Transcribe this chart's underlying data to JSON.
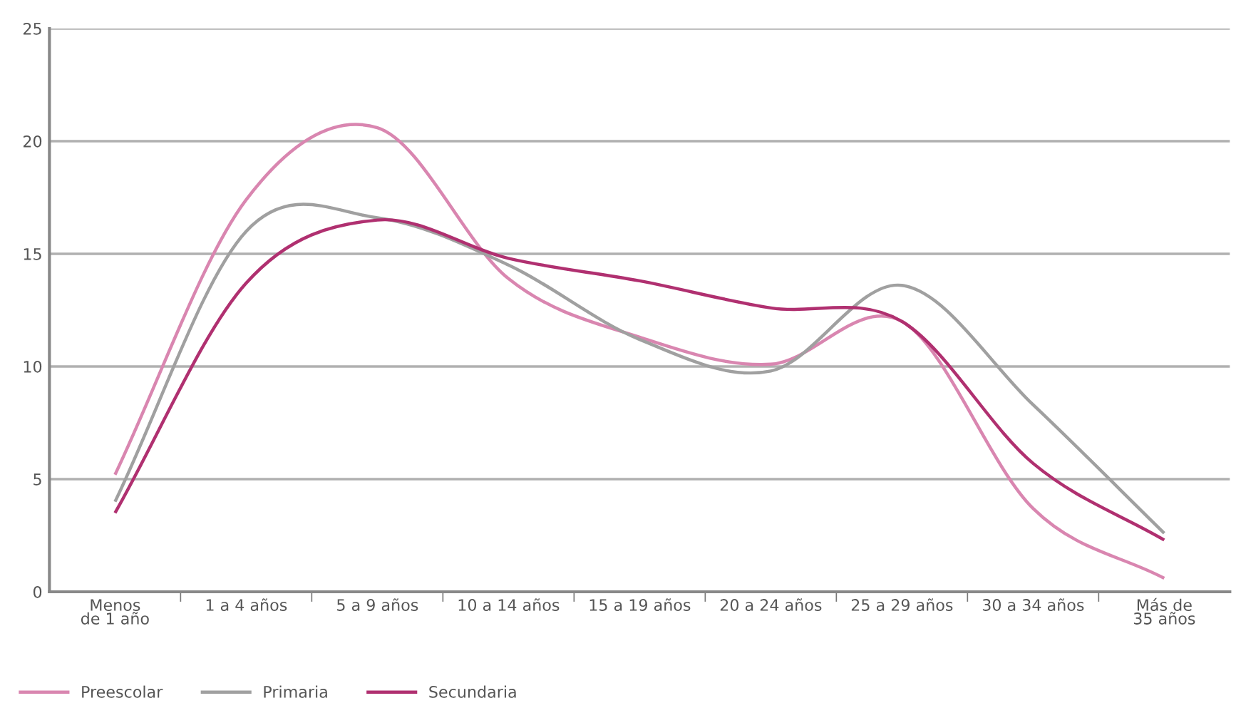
{
  "chart_data": {
    "type": "line",
    "categories": [
      "Menos\nde 1 año",
      "1 a 4 años",
      "5 a 9 años",
      "10 a 14 años",
      "15 a 19 años",
      "20 a 24 años",
      "25 a 29 años",
      "30 a 34 años",
      "Más de\n35 años"
    ],
    "series": [
      {
        "name": "Preescolar",
        "color": "#d986b0",
        "values": [
          5.2,
          17.4,
          20.6,
          13.9,
          11.3,
          10.1,
          12.0,
          3.7,
          0.6
        ]
      },
      {
        "name": "Primaria",
        "color": "#a0a0a0",
        "values": [
          4.0,
          16.0,
          16.6,
          14.5,
          11.2,
          9.8,
          13.6,
          8.3,
          2.6
        ]
      },
      {
        "name": "Secundaria",
        "color": "#b03070",
        "values": [
          3.5,
          13.7,
          16.5,
          14.8,
          13.8,
          12.6,
          12.0,
          5.7,
          2.3
        ]
      }
    ],
    "ylim": [
      0,
      25
    ],
    "yticks": [
      0,
      5,
      10,
      15,
      20,
      25
    ],
    "grid": "y",
    "legend": "bottom left",
    "marker": "none",
    "line_style": "solid"
  }
}
